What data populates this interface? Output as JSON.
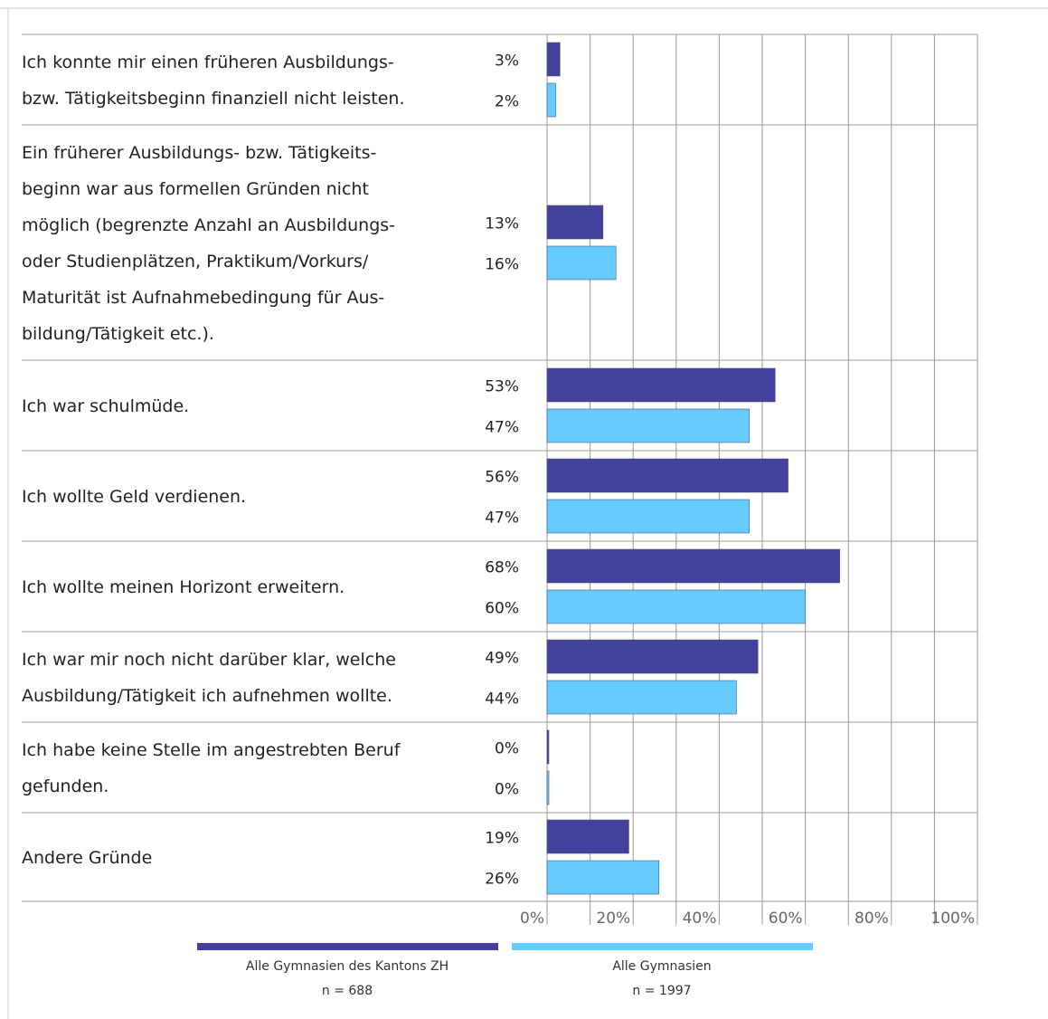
{
  "chart_data": {
    "type": "bar",
    "orientation": "horizontal",
    "categories": [
      "Ich konnte mir einen früheren Ausbildungs- bzw.  Tätigkeitsbeginn finanziell nicht leisten.",
      "Ein früherer Ausbildungs- bzw.  Tätigkeits- beginn war aus formellen Gründen nicht möglich (begrenzte Anzahl an Ausbildungs- oder Studienplätzen, Praktikum/Vorkurs/ Maturität ist Aufnahmebedingung für Aus- bildung/Tätigkeit etc.).",
      "Ich war schulmüde.",
      "Ich wollte Geld verdienen.",
      "Ich wollte meinen Horizont erweitern.",
      "Ich war mir noch nicht darüber klar, welche Ausbildung/Tätigkeit ich aufnehmen wollte.",
      "Ich habe keine Stelle im angestrebten Beruf gefunden.",
      "Andere Gründe"
    ],
    "category_lines": [
      [
        "Ich konnte mir einen früheren Ausbildungs-",
        "bzw.  Tätigkeitsbeginn finanziell nicht leisten."
      ],
      [
        "Ein früherer Ausbildungs- bzw.  Tätigkeits-",
        "beginn war aus formellen Gründen nicht",
        "möglich (begrenzte Anzahl an Ausbildungs-",
        "oder Studienplätzen, Praktikum/Vorkurs/",
        "Maturität ist Aufnahmebedingung für Aus-",
        "bildung/Tätigkeit etc.)."
      ],
      [
        "Ich war schulmüde."
      ],
      [
        "Ich wollte Geld verdienen."
      ],
      [
        "Ich wollte meinen Horizont erweitern."
      ],
      [
        "Ich war mir noch nicht darüber klar, welche",
        "Ausbildung/Tätigkeit ich aufnehmen wollte."
      ],
      [
        "Ich habe keine Stelle im angestrebten Beruf",
        "gefunden."
      ],
      [
        "Andere Gründe"
      ]
    ],
    "series": [
      {
        "name": "Alle Gymnasien des Kantons ZH",
        "n_label": "n = 688",
        "color": "#42429e",
        "values": [
          3,
          13,
          53,
          56,
          68,
          49,
          0,
          19
        ],
        "value_labels": [
          "3%",
          "13%",
          "53%",
          "56%",
          "68%",
          "49%",
          "0%",
          "19%"
        ]
      },
      {
        "name": "Alle Gymnasien",
        "n_label": "n = 1997",
        "color": "#66ccff",
        "values": [
          2,
          16,
          47,
          47,
          60,
          44,
          0,
          26
        ],
        "value_labels": [
          "2%",
          "16%",
          "47%",
          "47%",
          "60%",
          "44%",
          "0%",
          "26%"
        ]
      }
    ],
    "x_ticks": [
      "0%",
      "20%",
      "40%",
      "60%",
      "80%",
      "100%"
    ],
    "xlim": [
      0,
      100
    ],
    "grid": true,
    "legend_position": "bottom"
  },
  "colors": {
    "grid": "#999999",
    "text": "#222222",
    "tick_text": "#666666"
  }
}
